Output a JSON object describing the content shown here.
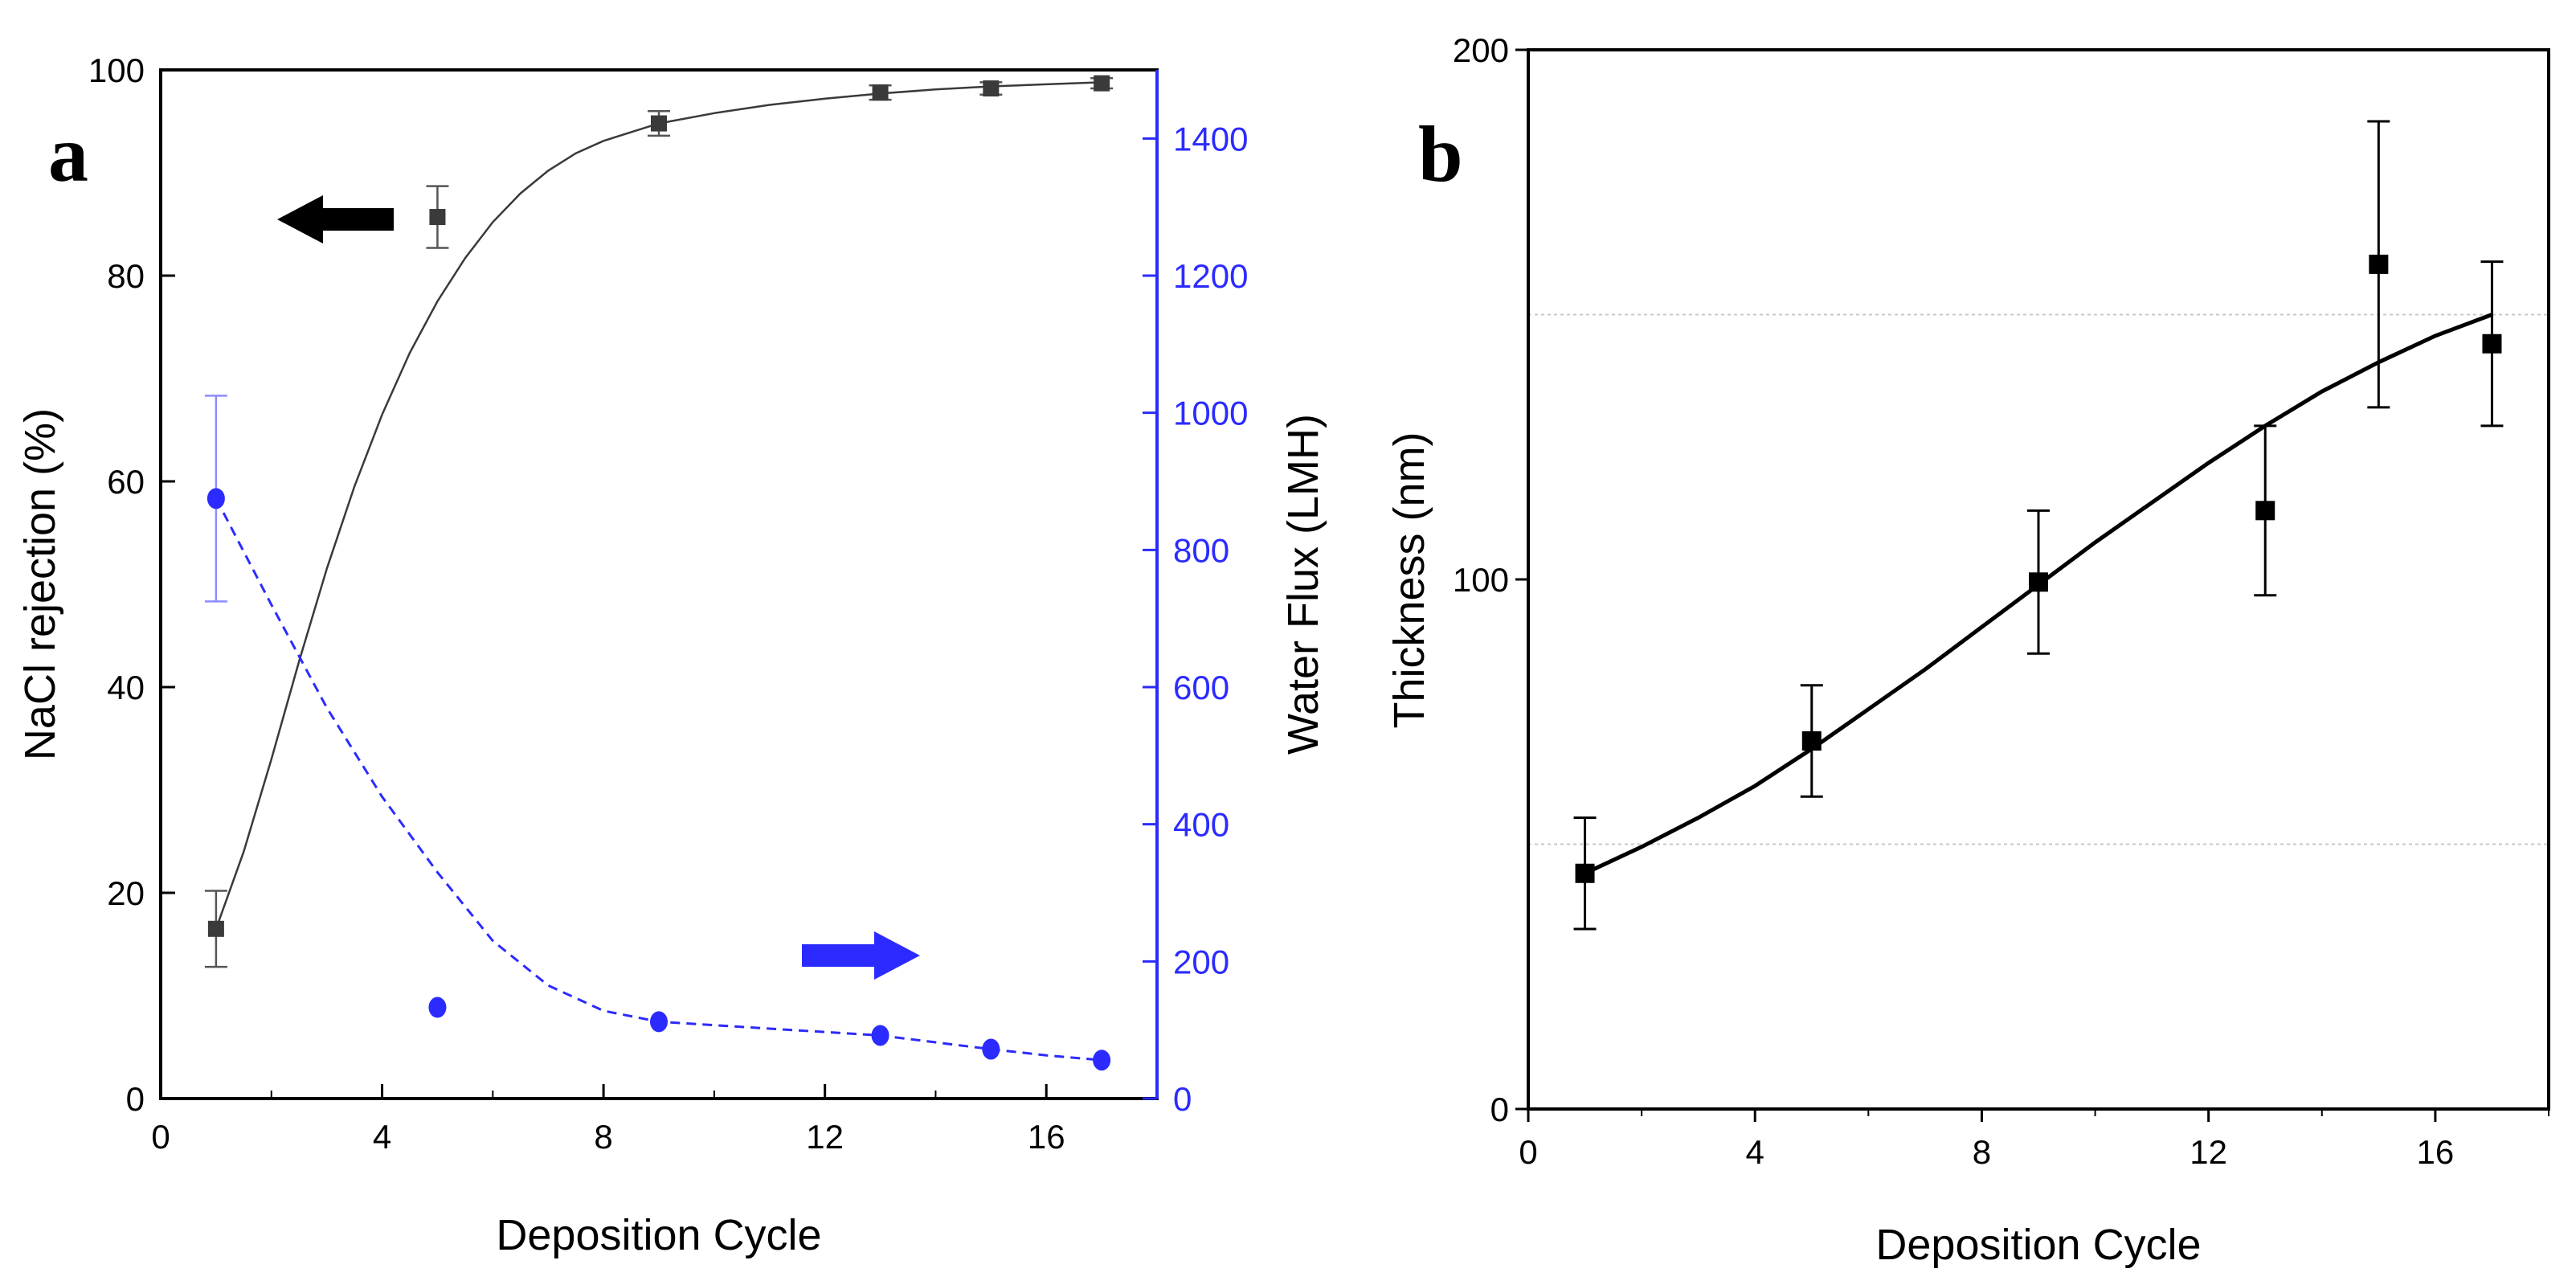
{
  "colors": {
    "black": "#000000",
    "dark_marker": "#3a3a3a",
    "blue": "#2b2bff",
    "light_blue_err": "#8c8cff",
    "grid": "#c8c8c8"
  },
  "chart_data": [
    {
      "type": "scatter",
      "panel_label": "a",
      "xlabel": "Deposition Cycle",
      "ylabel": "NaCl rejection (%)",
      "y2label": "Water Flux (LMH)",
      "xlim": [
        0,
        18
      ],
      "xticks": [
        0,
        4,
        8,
        12,
        16
      ],
      "ylim": [
        0,
        100
      ],
      "yticks": [
        0,
        20,
        40,
        60,
        80,
        100
      ],
      "y2lim": [
        0,
        1500
      ],
      "y2ticks": [
        0,
        200,
        400,
        600,
        800,
        1000,
        1200,
        1400
      ],
      "series": [
        {
          "name": "NaCl rejection",
          "axis": "left",
          "marker": "square",
          "color": "#3a3a3a",
          "x": [
            1,
            5,
            9,
            13,
            15,
            17
          ],
          "values": [
            16.5,
            85.7,
            94.8,
            97.8,
            98.2,
            98.7
          ],
          "errors": [
            3.7,
            3.0,
            1.2,
            0.7,
            0.6,
            0.5
          ],
          "fit_line": {
            "style": "solid",
            "x": [
              1,
              1.5,
              2,
              2.5,
              3,
              3.5,
              4,
              4.5,
              5,
              5.5,
              6,
              6.5,
              7,
              7.5,
              8,
              9,
              10,
              11,
              12,
              13,
              14,
              15,
              16,
              17
            ],
            "y": [
              16.5,
              24,
              33,
              42.5,
              51.5,
              59.5,
              66.5,
              72.5,
              77.5,
              81.7,
              85.2,
              88,
              90.2,
              91.9,
              93.1,
              94.8,
              95.8,
              96.6,
              97.2,
              97.7,
              98.1,
              98.4,
              98.6,
              98.8
            ]
          }
        },
        {
          "name": "Water flux",
          "axis": "right",
          "marker": "circle",
          "color": "#2b2bff",
          "x": [
            1,
            5,
            9,
            13,
            15,
            17
          ],
          "values": [
            875,
            133,
            112,
            92,
            72,
            56
          ],
          "errors": [
            150,
            0,
            0,
            0,
            0,
            0
          ],
          "fit_line": {
            "style": "dashed",
            "x": [
              1,
              2,
              3,
              4,
              5,
              6,
              7,
              8,
              9,
              10,
              11,
              12,
              13,
              14,
              15,
              16,
              17
            ],
            "y": [
              875,
              720,
              570,
              440,
              330,
              230,
              165,
              128,
              112,
              107,
              102,
              97,
              92,
              82,
              72,
              63,
              56
            ]
          }
        }
      ],
      "annotations": [
        {
          "text": "left arrow",
          "points_to": "left axis",
          "color": "#000000",
          "x": 3.3,
          "y": 86
        },
        {
          "text": "right arrow",
          "points_to": "right axis",
          "color": "#2b2bff",
          "x": 15.2,
          "y": 14
        }
      ]
    },
    {
      "type": "scatter",
      "panel_label": "b",
      "xlabel": "Deposition Cycle",
      "ylabel": "Thickness (nm)",
      "xlim": [
        0,
        18
      ],
      "xticks": [
        0,
        4,
        8,
        12,
        16
      ],
      "ylim": [
        0,
        200
      ],
      "yticks": [
        0,
        100,
        200
      ],
      "grid_y": [
        50,
        150
      ],
      "series": [
        {
          "name": "Thickness",
          "marker": "square",
          "color": "#000000",
          "x": [
            1,
            5,
            9,
            13,
            15,
            17
          ],
          "values": [
            44.5,
            69.5,
            99.5,
            113,
            159.5,
            144.5
          ],
          "errors": [
            10.5,
            10.5,
            13.5,
            16,
            27,
            15.5
          ],
          "fit_line": {
            "style": "solid",
            "x": [
              1,
              2,
              3,
              4,
              5,
              6,
              7,
              8,
              9,
              10,
              11,
              12,
              13,
              14,
              15,
              16,
              17
            ],
            "y": [
              44.5,
              49.5,
              55,
              61,
              68,
              75.5,
              83,
              91,
              99,
              107,
              114.5,
              122,
              129,
              135.5,
              141,
              146,
              150
            ]
          }
        }
      ]
    }
  ]
}
